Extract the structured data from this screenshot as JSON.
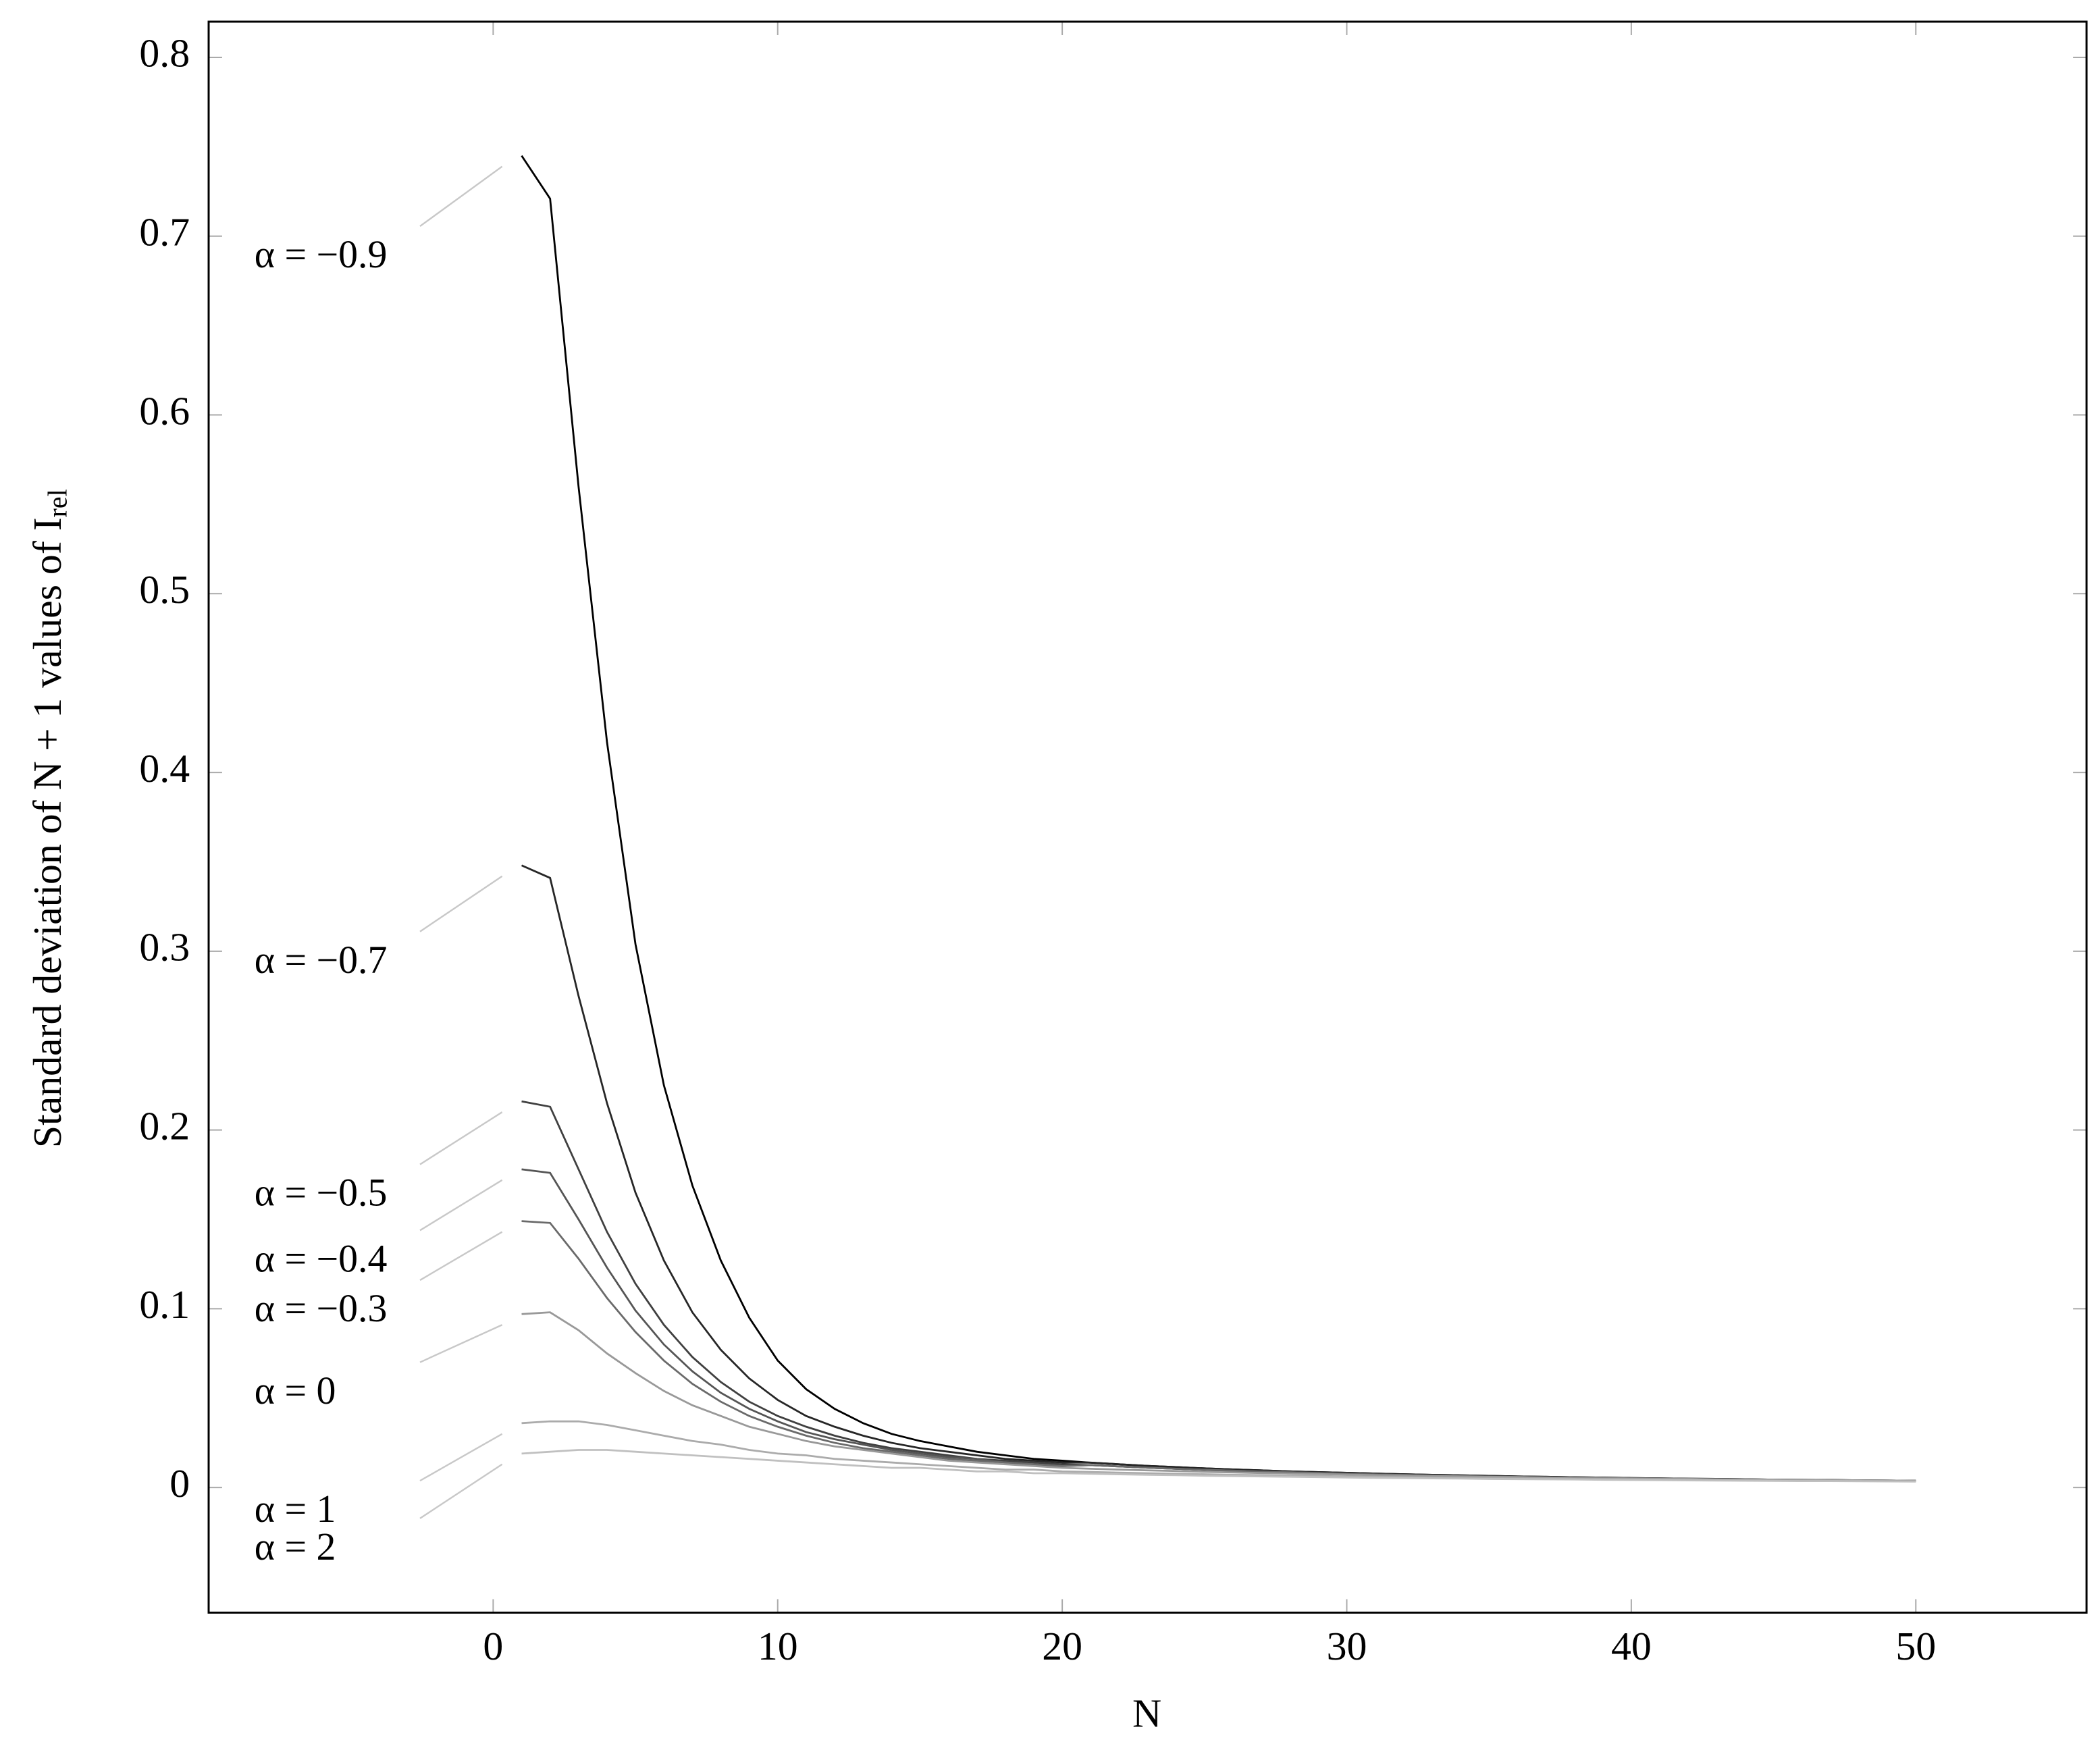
{
  "chart_data": {
    "type": "line",
    "xlabel": "N",
    "ylabel": "Standard deviation of N + 1 values of Irel",
    "xlim": [
      -10,
      56
    ],
    "ylim": [
      -0.07,
      0.82
    ],
    "xticks": [
      0,
      10,
      20,
      30,
      40,
      50
    ],
    "yticks": [
      0,
      0.1,
      0.2,
      0.3,
      0.4,
      0.5,
      0.6,
      0.7,
      0.8
    ],
    "x": [
      1,
      2,
      3,
      4,
      5,
      6,
      7,
      8,
      9,
      10,
      11,
      12,
      13,
      14,
      15,
      16,
      17,
      18,
      19,
      20,
      21,
      22,
      23,
      24,
      25,
      26,
      27,
      28,
      29,
      30,
      31,
      32,
      33,
      34,
      35,
      36,
      37,
      38,
      39,
      40,
      41,
      42,
      43,
      44,
      45,
      46,
      47,
      48,
      49,
      50
    ],
    "series": [
      {
        "name": "α = −0.9",
        "color": "#000000",
        "values": [
          0.745,
          0.721,
          0.56,
          0.417,
          0.304,
          0.225,
          0.169,
          0.127,
          0.095,
          0.071,
          0.055,
          0.044,
          0.036,
          0.03,
          0.026,
          0.023,
          0.02,
          0.018,
          0.016,
          0.015,
          0.0139,
          0.013,
          0.0121,
          0.0114,
          0.0107,
          0.0101,
          0.0096,
          0.009,
          0.0086,
          0.0082,
          0.0078,
          0.0074,
          0.0071,
          0.0068,
          0.0065,
          0.0062,
          0.006,
          0.0057,
          0.0055,
          0.0053,
          0.0051,
          0.0049,
          0.0048,
          0.0046,
          0.0044,
          0.0043,
          0.0042,
          0.004,
          0.0039,
          0.0038
        ]
      },
      {
        "name": "α = −0.7",
        "color": "#262626",
        "values": [
          0.348,
          0.341,
          0.275,
          0.215,
          0.165,
          0.127,
          0.098,
          0.077,
          0.061,
          0.049,
          0.04,
          0.034,
          0.029,
          0.025,
          0.022,
          0.02,
          0.018,
          0.016,
          0.015,
          0.014,
          0.0139,
          0.013,
          0.0121,
          0.0114,
          0.0107,
          0.0101,
          0.0096,
          0.009,
          0.0086,
          0.0082,
          0.0078,
          0.0074,
          0.0071,
          0.0068,
          0.0065,
          0.0062,
          0.006,
          0.0057,
          0.0055,
          0.0053,
          0.0051,
          0.0049,
          0.0048,
          0.0046,
          0.0044,
          0.0043,
          0.0042,
          0.004,
          0.0039,
          0.0038
        ]
      },
      {
        "name": "α = −0.5",
        "color": "#404040",
        "values": [
          0.216,
          0.213,
          0.178,
          0.143,
          0.114,
          0.091,
          0.073,
          0.059,
          0.048,
          0.04,
          0.034,
          0.029,
          0.025,
          0.022,
          0.02,
          0.018,
          0.016,
          0.015,
          0.014,
          0.013,
          0.0125,
          0.0118,
          0.0111,
          0.0105,
          0.0099,
          0.0094,
          0.0089,
          0.0085,
          0.0081,
          0.0077,
          0.0073,
          0.007,
          0.0067,
          0.0064,
          0.0061,
          0.0059,
          0.0056,
          0.0054,
          0.0052,
          0.005,
          0.0048,
          0.0047,
          0.0045,
          0.0044,
          0.0042,
          0.0041,
          0.004,
          0.0039,
          0.0038,
          0.0037
        ]
      },
      {
        "name": "α = −0.4",
        "color": "#555555",
        "values": [
          0.178,
          0.176,
          0.15,
          0.123,
          0.099,
          0.08,
          0.065,
          0.053,
          0.044,
          0.037,
          0.031,
          0.027,
          0.024,
          0.021,
          0.019,
          0.017,
          0.016,
          0.014,
          0.013,
          0.012,
          0.0125,
          0.0118,
          0.0111,
          0.0105,
          0.0099,
          0.0094,
          0.0089,
          0.0085,
          0.0081,
          0.0077,
          0.0073,
          0.007,
          0.0067,
          0.0064,
          0.0061,
          0.0059,
          0.0056,
          0.0054,
          0.0052,
          0.005,
          0.0048,
          0.0047,
          0.0045,
          0.0044,
          0.0042,
          0.0041,
          0.004,
          0.0039,
          0.0038,
          0.0037
        ]
      },
      {
        "name": "α = −0.3",
        "color": "#6a6a6a",
        "values": [
          0.149,
          0.148,
          0.128,
          0.106,
          0.087,
          0.071,
          0.058,
          0.048,
          0.04,
          0.034,
          0.029,
          0.025,
          0.022,
          0.02,
          0.018,
          0.016,
          0.015,
          0.014,
          0.013,
          0.012,
          0.0125,
          0.0118,
          0.0111,
          0.0105,
          0.0099,
          0.0094,
          0.0089,
          0.0085,
          0.0081,
          0.0077,
          0.0073,
          0.007,
          0.0067,
          0.0064,
          0.0061,
          0.0059,
          0.0056,
          0.0054,
          0.0052,
          0.005,
          0.0048,
          0.0047,
          0.0045,
          0.0044,
          0.0042,
          0.0041,
          0.004,
          0.0039,
          0.0038,
          0.0037
        ]
      },
      {
        "name": "α = 0",
        "color": "#999999",
        "values": [
          0.097,
          0.098,
          0.088,
          0.075,
          0.064,
          0.054,
          0.046,
          0.04,
          0.034,
          0.03,
          0.026,
          0.023,
          0.021,
          0.019,
          0.017,
          0.015,
          0.014,
          0.013,
          0.012,
          0.011,
          0.0105,
          0.01,
          0.0096,
          0.0092,
          0.0088,
          0.0084,
          0.0081,
          0.0078,
          0.0075,
          0.0072,
          0.0069,
          0.0067,
          0.0064,
          0.0062,
          0.006,
          0.0058,
          0.0056,
          0.0054,
          0.0052,
          0.0051,
          0.0049,
          0.0048,
          0.0046,
          0.0045,
          0.0044,
          0.0042,
          0.0041,
          0.004,
          0.0039,
          0.0038
        ]
      },
      {
        "name": "α = 1",
        "color": "#ababab",
        "values": [
          0.036,
          0.037,
          0.037,
          0.035,
          0.032,
          0.029,
          0.026,
          0.024,
          0.021,
          0.019,
          0.018,
          0.016,
          0.015,
          0.014,
          0.013,
          0.012,
          0.011,
          0.01,
          0.01,
          0.009,
          0.0087,
          0.0083,
          0.008,
          0.0077,
          0.0074,
          0.0071,
          0.0069,
          0.0066,
          0.0064,
          0.0062,
          0.006,
          0.0058,
          0.0056,
          0.0054,
          0.0053,
          0.0051,
          0.005,
          0.0048,
          0.0047,
          0.0046,
          0.0044,
          0.0043,
          0.0042,
          0.0041,
          0.004,
          0.0039,
          0.0038,
          0.0037,
          0.0036,
          0.0035
        ]
      },
      {
        "name": "α = 2",
        "color": "#c0c0c0",
        "values": [
          0.019,
          0.02,
          0.021,
          0.021,
          0.02,
          0.019,
          0.018,
          0.017,
          0.016,
          0.015,
          0.014,
          0.013,
          0.012,
          0.011,
          0.011,
          0.01,
          0.009,
          0.009,
          0.008,
          0.008,
          0.0077,
          0.0074,
          0.0071,
          0.0069,
          0.0066,
          0.0064,
          0.0062,
          0.006,
          0.0058,
          0.0056,
          0.0054,
          0.0053,
          0.0051,
          0.005,
          0.0048,
          0.0047,
          0.0046,
          0.0045,
          0.0043,
          0.0042,
          0.0041,
          0.004,
          0.0039,
          0.0038,
          0.0037,
          0.0036,
          0.0036,
          0.0035,
          0.0034,
          0.0033
        ]
      }
    ]
  }
}
